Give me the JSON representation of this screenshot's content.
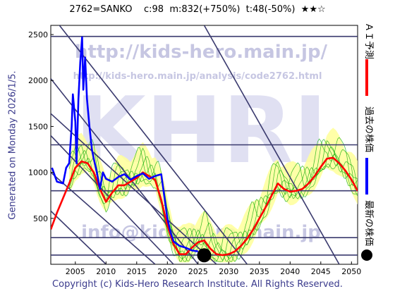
{
  "title_line": "2762=SANKO    c:98  m:832(+750%)  t:48(-50%)  ★★☆",
  "generated_label": "Generated on Monday 2026/1/5.",
  "copyright": "Copyright (c) Kids-Hero Research Institute. All Rights Reserved.",
  "watermarks": {
    "url_main": "http://kids-hero.main.jp/",
    "url_analysis": "http://kids-hero.main.jp/analysis/code2762.html",
    "logo": "KHRI",
    "email": "info@kids-hero.main.jp"
  },
  "legend": {
    "ai_forecast": "ＡＩ予測",
    "past_price": "過去の株価",
    "latest_price": "最新の株価"
  },
  "colors": {
    "ai_forecast": "#ff0000",
    "past_price": "#0000ff",
    "latest_price": "#000000",
    "band_fill": "#ffff99",
    "band_lines": "#00aa00",
    "trend_lines": "#3a3a6e",
    "watermark": "#9999cc"
  },
  "chart_data": {
    "type": "line",
    "xlim": [
      2001,
      2051
    ],
    "ylim": [
      0,
      2600
    ],
    "x_ticks": [
      2005,
      2010,
      2015,
      2020,
      2025,
      2030,
      2035,
      2040,
      2045,
      2050
    ],
    "y_ticks": [
      500,
      1000,
      1500,
      2000,
      2500
    ],
    "grid": false,
    "horizontal_levels": [
      100,
      290,
      800,
      1300,
      2480
    ],
    "diagonal_lines": [
      {
        "x1": 2001,
        "y1": 2720,
        "x2": 2033,
        "y2": 0
      },
      {
        "x1": 2001,
        "y1": 2020,
        "x2": 2025,
        "y2": 0
      },
      {
        "x1": 2001,
        "y1": 1640,
        "x2": 2028,
        "y2": 0
      },
      {
        "x1": 2001,
        "y1": 1400,
        "x2": 2021,
        "y2": 0
      },
      {
        "x1": 2001,
        "y1": 1000,
        "x2": 2018,
        "y2": 0
      },
      {
        "x1": 2001,
        "y1": 580,
        "x2": 2010,
        "y2": 0
      },
      {
        "x1": 2026,
        "y1": 2600,
        "x2": 2048,
        "y2": 0
      }
    ],
    "series": [
      {
        "name": "ＡＩ予測",
        "x": [
          2001,
          2002,
          2003,
          2004,
          2005,
          2006,
          2007,
          2008,
          2009,
          2010,
          2011,
          2012,
          2013,
          2014,
          2015,
          2016,
          2017,
          2018,
          2019,
          2020,
          2021,
          2022,
          2023,
          2024,
          2025,
          2026,
          2027,
          2028,
          2029,
          2030,
          2031,
          2032,
          2033,
          2034,
          2035,
          2036,
          2037,
          2038,
          2039,
          2040,
          2041,
          2042,
          2043,
          2044,
          2045,
          2046,
          2047,
          2048,
          2049,
          2050,
          2051
        ],
        "values": [
          380,
          560,
          720,
          880,
          1050,
          1120,
          1100,
          1000,
          820,
          680,
          780,
          860,
          860,
          900,
          940,
          1000,
          960,
          920,
          700,
          420,
          220,
          110,
          110,
          180,
          240,
          260,
          170,
          110,
          100,
          110,
          140,
          200,
          280,
          380,
          500,
          620,
          750,
          880,
          820,
          790,
          800,
          820,
          880,
          960,
          1060,
          1150,
          1160,
          1100,
          1020,
          920,
          800
        ]
      },
      {
        "name": "過去の株価",
        "x": [
          2001.2,
          2002,
          2003,
          2003.5,
          2004,
          2004.4,
          2004.6,
          2005,
          2005.2,
          2005.5,
          2005.8,
          2006.1,
          2006.3,
          2006.6,
          2006.9,
          2007.3,
          2007.7,
          2008,
          2008.5,
          2009,
          2009.5,
          2010,
          2011,
          2012,
          2013,
          2014,
          2015,
          2016,
          2017,
          2018,
          2019,
          2020,
          2020.5,
          2021,
          2022,
          2023,
          2024,
          2025
        ],
        "values": [
          1050,
          900,
          880,
          1050,
          1100,
          1500,
          1850,
          1550,
          1100,
          1800,
          2200,
          2470,
          1900,
          2250,
          1800,
          1500,
          1250,
          1150,
          1000,
          820,
          1000,
          930,
          900,
          950,
          980,
          920,
          960,
          990,
          930,
          960,
          980,
          500,
          350,
          250,
          200,
          180,
          150,
          140
        ]
      }
    ],
    "latest_point": {
      "x": 2026,
      "y": 98
    }
  }
}
